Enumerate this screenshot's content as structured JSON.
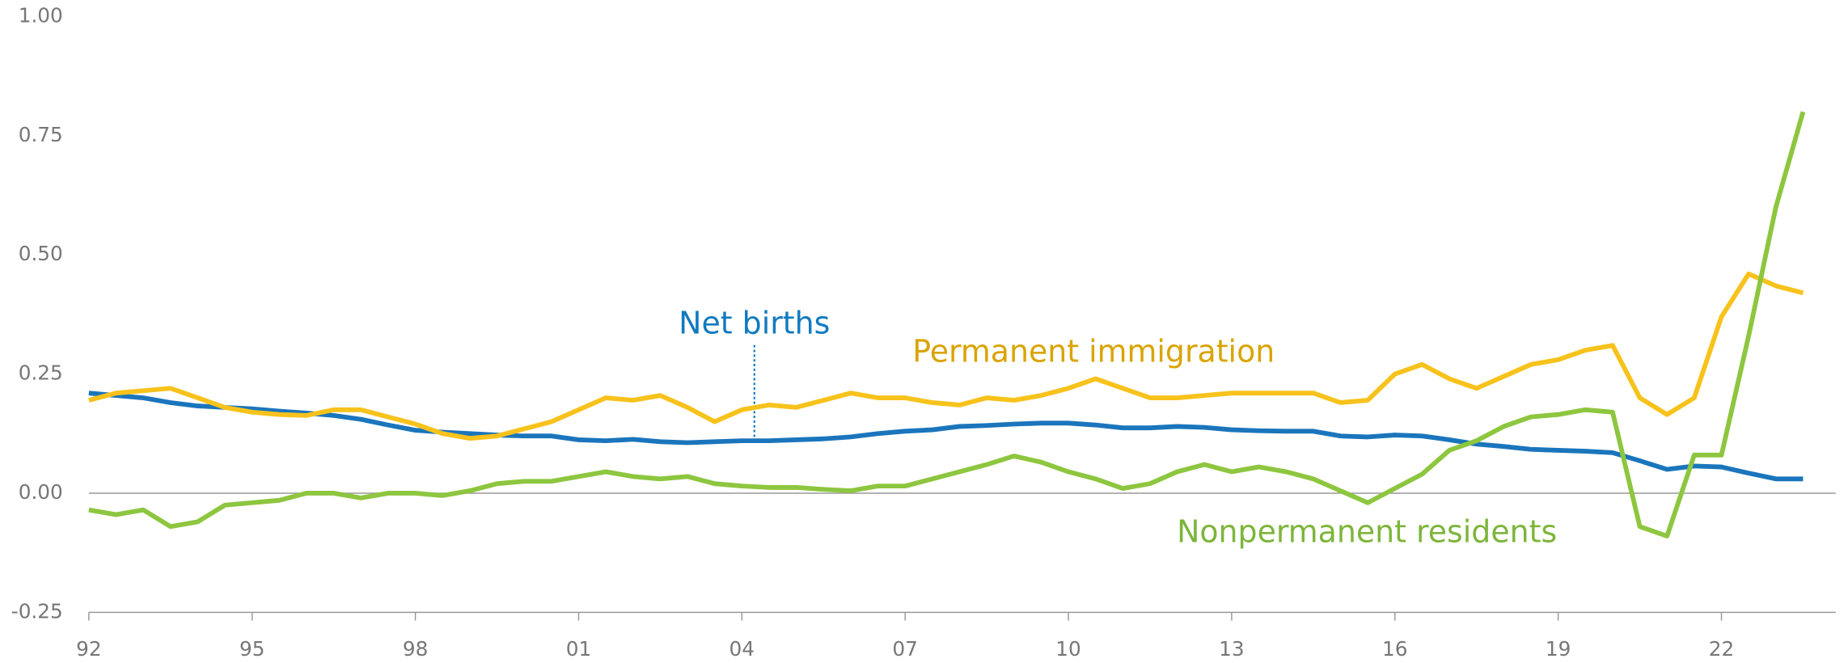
{
  "chart_data": {
    "type": "line",
    "x": [
      1992,
      1992.5,
      1993,
      1993.5,
      1994,
      1994.5,
      1995,
      1995.5,
      1996,
      1996.5,
      1997,
      1997.5,
      1998,
      1998.5,
      1999,
      1999.5,
      2000,
      2000.5,
      2001,
      2001.5,
      2002,
      2002.5,
      2003,
      2003.5,
      2004,
      2004.5,
      2005,
      2005.5,
      2006,
      2006.5,
      2007,
      2007.5,
      2008,
      2008.5,
      2009,
      2009.5,
      2010,
      2010.5,
      2011,
      2011.5,
      2012,
      2012.5,
      2013,
      2013.5,
      2014,
      2014.5,
      2015,
      2015.5,
      2016,
      2016.5,
      2017,
      2017.5,
      2018,
      2018.5,
      2019,
      2019.5,
      2020,
      2020.5,
      2021,
      2021.5,
      2022,
      2022.5,
      2023,
      2023.5
    ],
    "series": [
      {
        "name": "Net births",
        "color": "#1a75bc",
        "values": [
          0.21,
          0.205,
          0.2,
          0.19,
          0.183,
          0.18,
          0.177,
          0.172,
          0.168,
          0.163,
          0.155,
          0.143,
          0.132,
          0.128,
          0.125,
          0.122,
          0.12,
          0.12,
          0.112,
          0.11,
          0.113,
          0.108,
          0.106,
          0.108,
          0.11,
          0.11,
          0.112,
          0.114,
          0.118,
          0.125,
          0.13,
          0.133,
          0.14,
          0.142,
          0.145,
          0.147,
          0.147,
          0.143,
          0.137,
          0.137,
          0.14,
          0.138,
          0.133,
          0.131,
          0.13,
          0.13,
          0.12,
          0.118,
          0.122,
          0.12,
          0.112,
          0.103,
          0.098,
          0.092,
          0.09,
          0.088,
          0.085,
          0.068,
          0.05,
          0.057,
          0.055,
          0.042,
          0.03,
          0.03
        ]
      },
      {
        "name": "Permanent immigration",
        "color": "#f7c21b",
        "values": [
          0.195,
          0.21,
          0.215,
          0.22,
          0.2,
          0.18,
          0.17,
          0.165,
          0.163,
          0.175,
          0.175,
          0.16,
          0.145,
          0.125,
          0.115,
          0.12,
          0.135,
          0.15,
          0.175,
          0.2,
          0.195,
          0.205,
          0.18,
          0.15,
          0.175,
          0.185,
          0.18,
          0.195,
          0.21,
          0.2,
          0.2,
          0.19,
          0.185,
          0.2,
          0.195,
          0.205,
          0.22,
          0.24,
          0.22,
          0.2,
          0.2,
          0.205,
          0.21,
          0.21,
          0.21,
          0.21,
          0.19,
          0.195,
          0.25,
          0.27,
          0.24,
          0.22,
          0.245,
          0.27,
          0.28,
          0.3,
          0.31,
          0.2,
          0.165,
          0.2,
          0.37,
          0.46,
          0.435,
          0.42
        ]
      },
      {
        "name": "Nonpermanent residents",
        "color": "#8dc63f",
        "values": [
          -0.035,
          -0.045,
          -0.035,
          -0.07,
          -0.06,
          -0.025,
          -0.02,
          -0.015,
          0,
          0,
          -0.01,
          0,
          0,
          -0.005,
          0.005,
          0.02,
          0.025,
          0.025,
          0.035,
          0.045,
          0.035,
          0.03,
          0.035,
          0.02,
          0.015,
          0.012,
          0.012,
          0.008,
          0.005,
          0.015,
          0.015,
          0.03,
          0.045,
          0.06,
          0.078,
          0.065,
          0.045,
          0.03,
          0.01,
          0.02,
          0.045,
          0.06,
          0.045,
          0.055,
          0.045,
          0.03,
          0.005,
          -0.02,
          0.01,
          0.04,
          0.09,
          0.11,
          0.14,
          0.16,
          0.165,
          0.175,
          0.17,
          -0.07,
          -0.09,
          0.08,
          0.08,
          0.33,
          0.6,
          0.8
        ]
      }
    ],
    "xlim": [
      1992,
      2024.1
    ],
    "xticks": [
      {
        "value": 1992,
        "label": "92"
      },
      {
        "value": 1995,
        "label": "95"
      },
      {
        "value": 1998,
        "label": "98"
      },
      {
        "value": 2001,
        "label": "01"
      },
      {
        "value": 2004,
        "label": "04"
      },
      {
        "value": 2007,
        "label": "07"
      },
      {
        "value": 2010,
        "label": "10"
      },
      {
        "value": 2013,
        "label": "13"
      },
      {
        "value": 2016,
        "label": "16"
      },
      {
        "value": 2019,
        "label": "19"
      },
      {
        "value": 2022,
        "label": "22"
      }
    ],
    "ylim": [
      -0.25,
      1
    ],
    "yticks": [
      {
        "value": -0.25,
        "label": "-0.25"
      },
      {
        "value": 0,
        "label": "0.00"
      },
      {
        "value": 0.25,
        "label": "0.25"
      },
      {
        "value": 0.5,
        "label": "0.50"
      },
      {
        "value": 0.75,
        "label": "0.75"
      },
      {
        "value": 1,
        "label": "1.00"
      }
    ]
  }
}
